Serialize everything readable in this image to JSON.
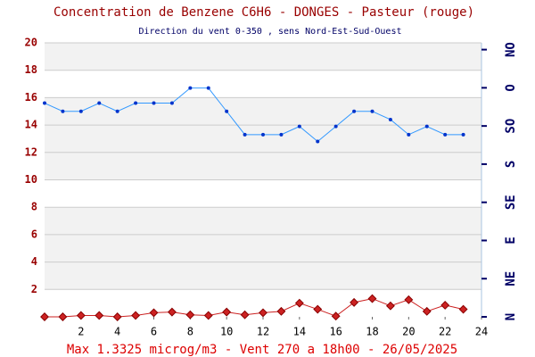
{
  "chart_data": {
    "type": "line",
    "title": "Concentration de Benzene C6H6  -   DONGES - Pasteur (rouge)",
    "subtitle": "Direction du vent 0-350 , sens Nord-Est-Sud-Ouest",
    "footer": "Max 1.3325 microg/m3 - Vent 270  a 18h00 - 26/05/2025",
    "x": [
      0,
      1,
      2,
      3,
      4,
      5,
      6,
      7,
      8,
      9,
      10,
      11,
      12,
      13,
      14,
      15,
      16,
      17,
      18,
      19,
      20,
      21,
      22,
      23
    ],
    "series": [
      {
        "color": "#3399ff",
        "values": [
          15.6,
          15.0,
          15.0,
          15.6,
          15.0,
          15.6,
          15.6,
          15.6,
          16.7,
          16.7,
          15.0,
          13.3,
          13.3,
          13.3,
          13.9,
          12.8,
          13.9,
          15.0,
          15.0,
          14.4,
          13.3,
          13.9,
          13.3,
          13.3
        ]
      },
      {
        "color": "#cc2222",
        "values": [
          0.0,
          0.0,
          0.1,
          0.1,
          0.0,
          0.1,
          0.3,
          0.35,
          0.15,
          0.1,
          0.35,
          0.15,
          0.3,
          0.4,
          1.0,
          0.55,
          0.05,
          1.05,
          1.33,
          0.8,
          1.25,
          0.4,
          0.85,
          0.55
        ]
      }
    ],
    "xlim": [
      0,
      24
    ],
    "xticks": [
      2,
      4,
      6,
      8,
      10,
      12,
      14,
      16,
      18,
      20,
      22,
      24
    ],
    "ylim": [
      0,
      20
    ],
    "yticks": [
      2,
      4,
      6,
      8,
      10,
      12,
      14,
      16,
      18,
      20
    ],
    "y2lim": [
      0,
      323
    ],
    "y2ticks": [
      {
        "value": 0,
        "label": "N"
      },
      {
        "value": 45,
        "label": "NE"
      },
      {
        "value": 90,
        "label": "E"
      },
      {
        "value": 135,
        "label": "SE"
      },
      {
        "value": 180,
        "label": "S"
      },
      {
        "value": 225,
        "label": "SO"
      },
      {
        "value": 270,
        "label": "O"
      },
      {
        "value": 315,
        "label": "NO"
      }
    ],
    "grid": true
  }
}
